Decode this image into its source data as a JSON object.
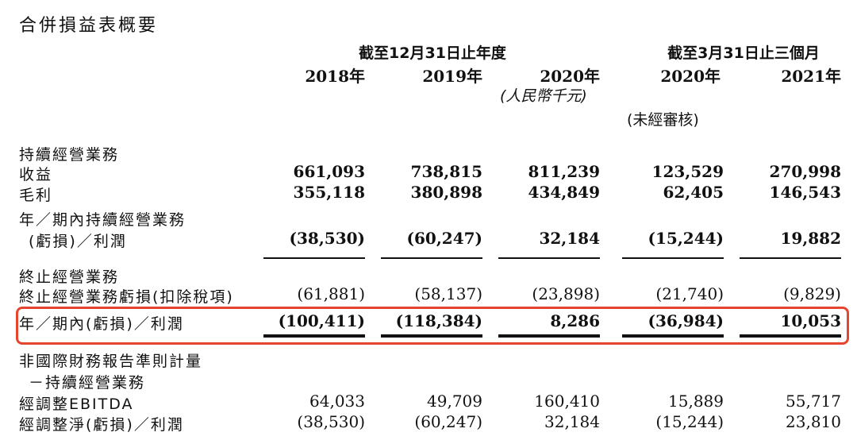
{
  "title": "合併損益表概要",
  "header": {
    "group1": "截至12月31日止年度",
    "group2": "截至3月31日止三個月",
    "years": [
      "2018年",
      "2019年",
      "2020年",
      "2020年",
      "2021年"
    ],
    "unit": "(人民幣千元)",
    "unaudited": "(未經審核)"
  },
  "rows": [
    {
      "label": "持續經營業務",
      "values": []
    },
    {
      "label": "收益",
      "values": [
        "661,093",
        "738,815",
        "811,239",
        "123,529",
        "270,998"
      ]
    },
    {
      "label": "毛利",
      "values": [
        "355,118",
        "380,898",
        "434,849",
        "62,405",
        "146,543"
      ]
    },
    {
      "label": "年／期內持續經營業務",
      "values": []
    },
    {
      "label": "(虧損)／利潤",
      "values": [
        "(38,530)",
        "(60,247)",
        "32,184",
        "(15,244)",
        "19,882"
      ]
    },
    {
      "label": "終止經營業務",
      "values": []
    },
    {
      "label": "終止經營業務虧損(扣除稅項)",
      "values": [
        "(61,881)",
        "(58,137)",
        "(23,898)",
        "(21,740)",
        "(9,829)"
      ]
    },
    {
      "label": "年／期內(虧損)／利潤",
      "values": [
        "(100,411)",
        "(118,384)",
        "8,286",
        "(36,984)",
        "10,053"
      ]
    },
    {
      "label": "非國際財務報告準則計量",
      "values": []
    },
    {
      "label": "－持續經營業務",
      "values": []
    },
    {
      "label": "經調整EBITDA",
      "values": [
        "64,033",
        "49,709",
        "160,410",
        "15,889",
        "55,717"
      ]
    },
    {
      "label": "經調整淨(虧損)／利潤",
      "values": [
        "(38,530)",
        "(60,247)",
        "32,184",
        "(15,244)",
        "23,810"
      ]
    }
  ]
}
